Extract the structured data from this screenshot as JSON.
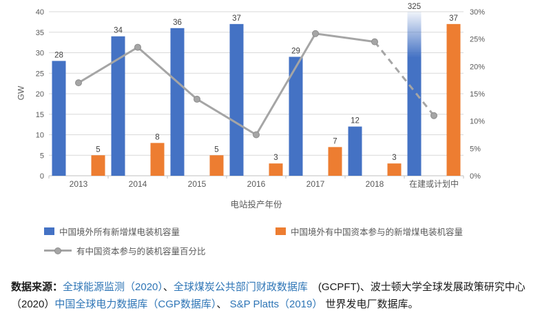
{
  "chart_data": {
    "type": "bar",
    "combo": "bar+line",
    "title": "",
    "categories": [
      "2013",
      "2014",
      "2015",
      "2016",
      "2017",
      "2018",
      "在建或计划中"
    ],
    "series": [
      {
        "name": "中国境外所有新增煤电装机容量",
        "kind": "bar",
        "axis": "left",
        "color": "#4472C4",
        "values": [
          28,
          34,
          36,
          37,
          29,
          12,
          325
        ]
      },
      {
        "name": "中国境外有中国资本参与的新增煤电装机容量",
        "kind": "bar",
        "axis": "left",
        "color": "#ED7D31",
        "values": [
          5,
          8,
          5,
          3,
          7,
          3,
          37
        ]
      },
      {
        "name": "有中国资本参与的装机容量百分比",
        "kind": "line",
        "axis": "right",
        "color": "#A5A5A5",
        "values": [
          17,
          23.5,
          14,
          7.5,
          26,
          24.5,
          11
        ],
        "dashed_from_index": 5
      }
    ],
    "left_axis": {
      "label": "GW",
      "min": 0,
      "max": 40,
      "step": 5
    },
    "right_axis": {
      "min": 0,
      "max": 30,
      "step": 5,
      "suffix": "%"
    },
    "xlabel": "电站投产年份",
    "truncated_bar": {
      "series_index": 0,
      "category_index": 6,
      "displayed_value": 325
    },
    "grid": "horizontal",
    "legend_position": "bottom"
  },
  "caption": {
    "segments": [
      {
        "text": "数据来源：",
        "style": "bold"
      },
      {
        "text": "全球能源监测（2020）",
        "style": "link"
      },
      {
        "text": "、",
        "style": "normal"
      },
      {
        "text": "全球煤炭公共部门财政数据库",
        "style": "link"
      },
      {
        "text": "　(GCPFT)、波士顿大学全球发展政策研究中心",
        "style": "normal"
      },
      {
        "text": "",
        "style": "break"
      },
      {
        "text": "（2020）",
        "style": "normal"
      },
      {
        "text": "中国全球电力数据库（CGP数据库）",
        "style": "link"
      },
      {
        "text": "、 ",
        "style": "normal"
      },
      {
        "text": "S&P Platts（2019）",
        "style": "link"
      },
      {
        "text": " 世界发电厂数据库。",
        "style": "normal"
      }
    ]
  },
  "colors": {
    "bar_blue": "#4472C4",
    "bar_orange": "#ED7D31",
    "line_gray": "#A5A5A5",
    "axis_text": "#595959",
    "data_label_text": "#404040",
    "gridline": "#D9D9D9",
    "link_blue": "#2E75B6"
  }
}
